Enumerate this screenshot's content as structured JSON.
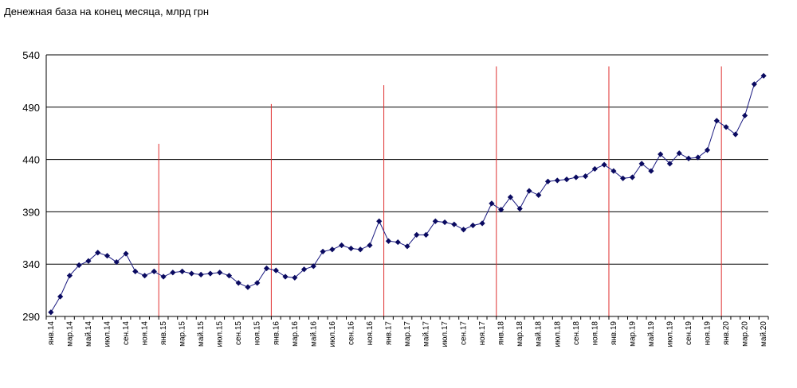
{
  "chart_data": {
    "type": "line",
    "title": "Денежная база на конец месяца, млрд грн",
    "xlabel": "",
    "ylabel": "",
    "ylim": [
      290,
      540
    ],
    "yticks": [
      290,
      340,
      390,
      440,
      490,
      540
    ],
    "grid": true,
    "categories": [
      "янв.14",
      "фев.14",
      "мар.14",
      "апр.14",
      "май.14",
      "июн.14",
      "июл.14",
      "авг.14",
      "сен.14",
      "окт.14",
      "ноя.14",
      "дек.14",
      "янв.15",
      "фев.15",
      "мар.15",
      "апр.15",
      "май.15",
      "июн.15",
      "июл.15",
      "авг.15",
      "сен.15",
      "окт.15",
      "ноя.15",
      "дек.15",
      "янв.16",
      "фев.16",
      "мар.16",
      "апр.16",
      "май.16",
      "июн.16",
      "июл.16",
      "авг.16",
      "сен.16",
      "окт.16",
      "ноя.16",
      "дек.16",
      "янв.17",
      "фев.17",
      "мар.17",
      "апр.17",
      "май.17",
      "июн.17",
      "июл.17",
      "авг.17",
      "сен.17",
      "окт.17",
      "ноя.17",
      "дек.17",
      "янв.18",
      "фев.18",
      "мар.18",
      "апр.18",
      "май.18",
      "июн.18",
      "июл.18",
      "авг.18",
      "сен.18",
      "окт.18",
      "ноя.18",
      "дек.18",
      "янв.19",
      "фев.19",
      "мар.19",
      "апр.19",
      "май.19",
      "июн.19",
      "июл.19",
      "авг.19",
      "сен.19",
      "окт.19",
      "ноя.19",
      "дек.19",
      "янв.20",
      "фев.20",
      "мар.20",
      "апр.20",
      "май.20"
    ],
    "tick_labels": [
      "янв.14",
      "мар.14",
      "май.14",
      "июл.14",
      "сен.14",
      "ноя.14",
      "янв.15",
      "мар.15",
      "май.15",
      "июл.15",
      "сен.15",
      "ноя.15",
      "янв.16",
      "мар.16",
      "май.16",
      "июл.16",
      "сен.16",
      "ноя.16",
      "янв.17",
      "мар.17",
      "май.17",
      "июл.17",
      "сен.17",
      "ноя.17",
      "янв.18",
      "мар.18",
      "май.18",
      "июл.18",
      "сен.18",
      "ноя.18",
      "янв.19",
      "мар.19",
      "май.19",
      "июл.19",
      "сен.19",
      "ноя.19",
      "янв.20",
      "мар.20",
      "май.20"
    ],
    "series": [
      {
        "name": "",
        "color": "#1a1a80",
        "values": [
          294,
          309,
          329,
          339,
          343,
          351,
          348,
          342,
          350,
          333,
          329,
          333,
          328,
          332,
          333,
          331,
          330,
          331,
          332,
          329,
          322,
          318,
          322,
          336,
          334,
          328,
          327,
          335,
          338,
          352,
          354,
          358,
          355,
          354,
          358,
          381,
          362,
          361,
          357,
          368,
          368,
          381,
          380,
          378,
          373,
          377,
          379,
          398,
          392,
          404,
          393,
          410,
          406,
          419,
          420,
          421,
          423,
          424,
          431,
          435,
          429,
          422,
          423,
          436,
          429,
          445,
          436,
          446,
          441,
          442,
          449,
          477,
          471,
          464,
          482,
          512,
          520
        ]
      }
    ],
    "year_markers": [
      {
        "category": "дек.14",
        "top": 455
      },
      {
        "category": "дек.15",
        "top": 493
      },
      {
        "category": "дек.16",
        "top": 511
      },
      {
        "category": "дек.17",
        "top": 529
      },
      {
        "category": "дек.18",
        "top": 529
      },
      {
        "category": "дек.19",
        "top": 529
      }
    ],
    "marker_color": "#e03030",
    "grid_color": "#000000"
  }
}
